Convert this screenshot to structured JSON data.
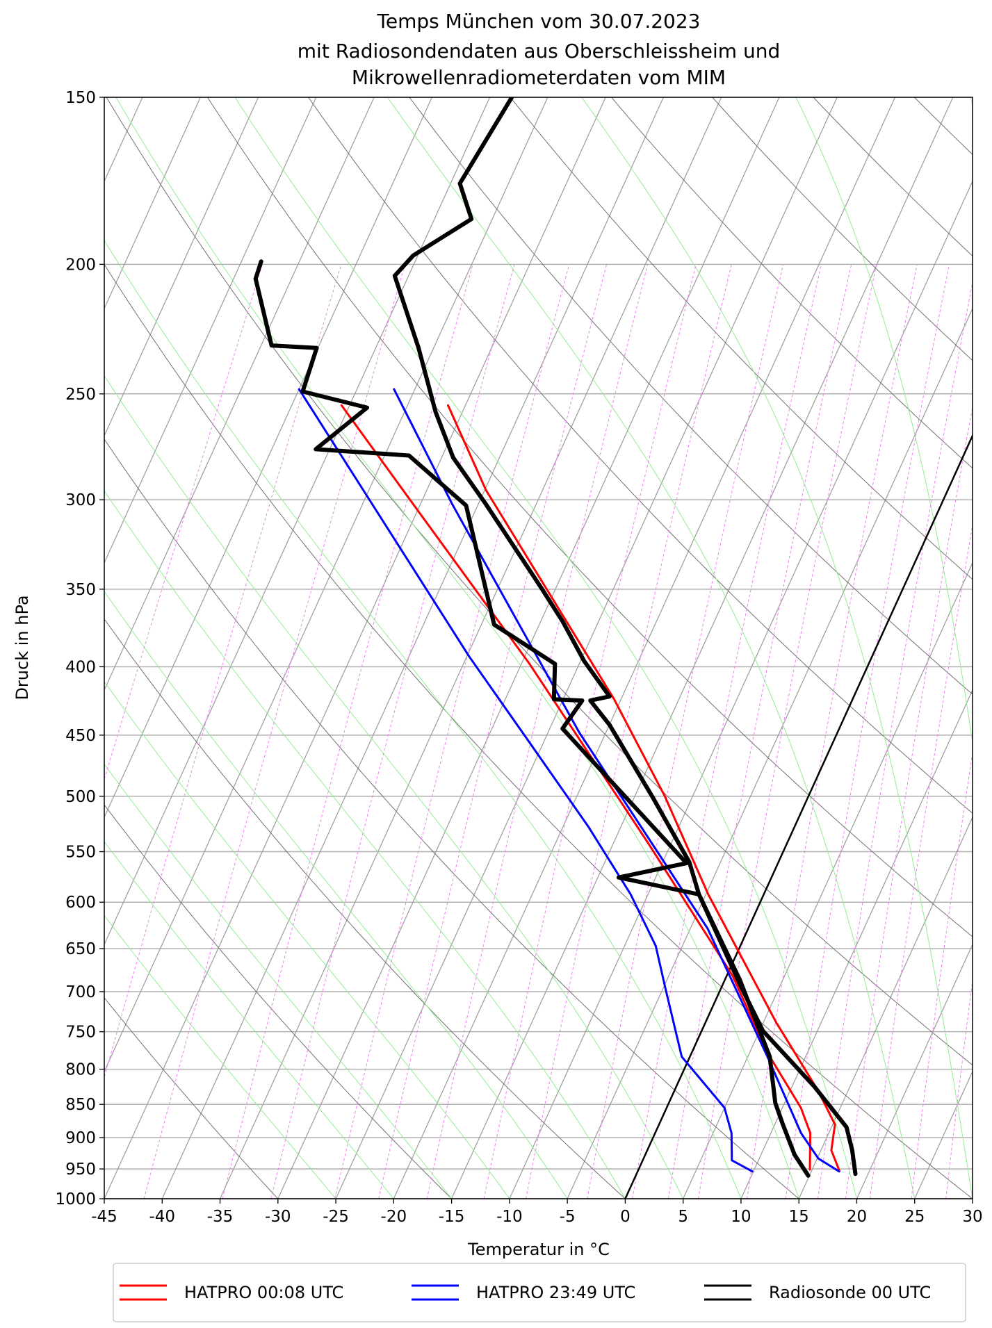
{
  "chart_data": {
    "type": "skewt",
    "title": [
      "Temps München vom 30.07.2023",
      "mit Radiosondendaten aus Oberschleissheim und",
      "Mikrowellenradiometerdaten vom MIM"
    ],
    "x_label": "Temperatur in °C",
    "y_label": "Druck in hPa",
    "xlim": [
      -45,
      30
    ],
    "ylim": [
      1000,
      150
    ],
    "y_scale": "log",
    "xticks": [
      -45,
      -40,
      -35,
      -30,
      -25,
      -20,
      -15,
      -10,
      -5,
      0,
      5,
      10,
      15,
      20,
      25,
      30
    ],
    "yticks": [
      150,
      200,
      250,
      300,
      350,
      400,
      450,
      500,
      550,
      600,
      650,
      700,
      750,
      800,
      850,
      900,
      950,
      1000
    ],
    "grid": true,
    "highlighted_isotherm": 0,
    "legend": "bottom",
    "series": [
      {
        "name": "HATPRO 00:08 UTC",
        "color": "#ff0000",
        "temperature": {
          "pressure": [
            953,
            920,
            880,
            830,
            738,
            592,
            500,
            423,
            349,
            295,
            255
          ],
          "values": [
            17.4,
            15.9,
            15.2,
            12.4,
            6.1,
            -4.8,
            -12.4,
            -20.6,
            -30.9,
            -39.9,
            -46.5
          ]
        },
        "dewpoint": {
          "pressure": [
            951,
            893,
            855,
            777,
            681,
            542,
            398,
            306,
            255
          ],
          "values": [
            14.8,
            13.4,
            11.6,
            6.5,
            0.5,
            -12.0,
            -29.3,
            -44.9,
            -55.7
          ]
        }
      },
      {
        "name": "HATPRO 23:49 UTC",
        "color": "#0000ff",
        "temperature": {
          "pressure": [
            954,
            933,
            893,
            783,
            628,
            519,
            448,
            302,
            248
          ],
          "values": [
            17.4,
            15.1,
            12.6,
            6.7,
            -3.5,
            -14.1,
            -22.3,
            -42.3,
            -51.8
          ]
        },
        "dewpoint": {
          "pressure": [
            954,
            936,
            893,
            855,
            783,
            696,
            647,
            592,
            527,
            455,
            393,
            248
          ],
          "values": [
            9.9,
            7.7,
            6.6,
            5.0,
            -0.7,
            -4.8,
            -7.3,
            -11.5,
            -17.8,
            -26.3,
            -34.8,
            -60.0
          ]
        }
      },
      {
        "name": "Radiosonde 00 UTC",
        "color": "#000000",
        "temperature": {
          "pressure": [
            958,
            920,
            884,
            824,
            749,
            696,
            592,
            560,
            500,
            442,
            424,
            421,
            396,
            370,
            349,
            302,
            279,
            258,
            231,
            204,
            197,
            185,
            174,
            150
          ],
          "values": [
            18.9,
            17.7,
            16.3,
            11.9,
            5.3,
            1.8,
            -5.6,
            -7.7,
            -13.5,
            -20.0,
            -22.6,
            -21.1,
            -24.7,
            -28.1,
            -31.3,
            -39.4,
            -44.0,
            -47.3,
            -51.3,
            -56.2,
            -55.4,
            -51.8,
            -54.2,
            -53.1
          ]
        },
        "dewpoint": {
          "pressure": [
            961,
            927,
            880,
            848,
            783,
            686,
            592,
            575,
            561,
            445,
            424,
            423,
            398,
            372,
            303,
            278,
            275,
            256,
            249,
            231,
            230,
            205,
            199
          ],
          "values": [
            14.9,
            12.9,
            10.7,
            9.2,
            6.9,
            1.3,
            -5.6,
            -13.2,
            -7.9,
            -23.9,
            -23.3,
            -25.8,
            -27.1,
            -33.9,
            -41.0,
            -47.9,
            -56.2,
            -53.4,
            -59.6,
            -60.1,
            -64.1,
            -68.1,
            -68.3
          ]
        }
      }
    ]
  }
}
